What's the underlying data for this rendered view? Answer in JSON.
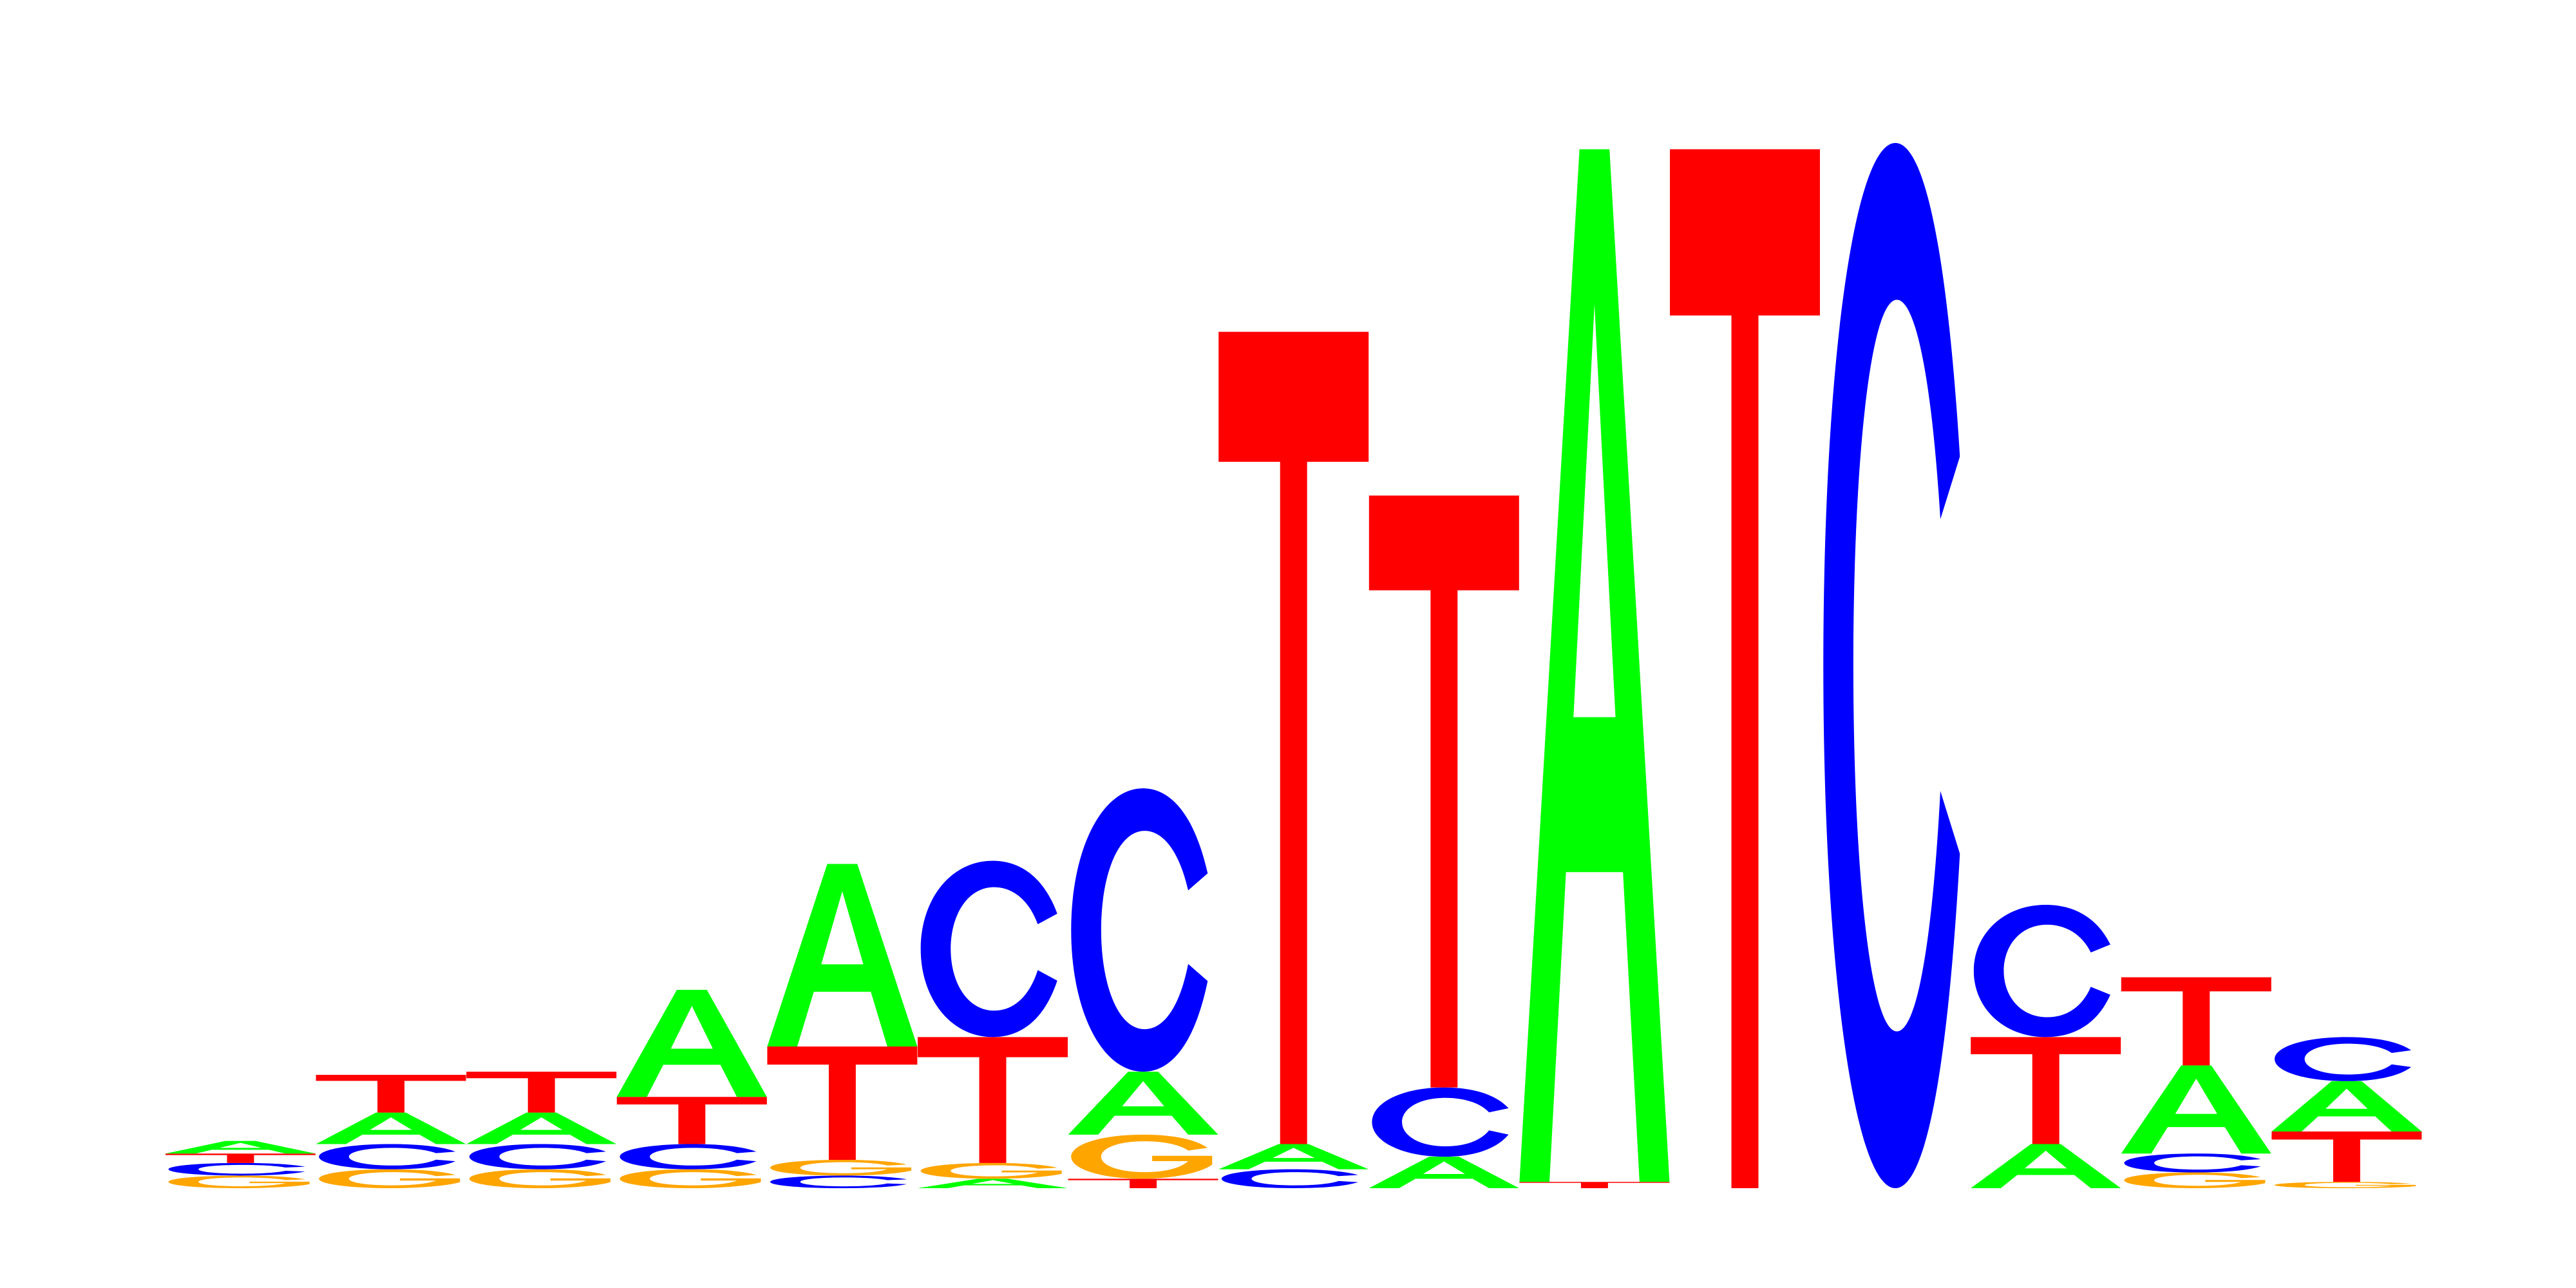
{
  "chart_data": {
    "type": "sequence-logo",
    "alphabet": [
      "A",
      "C",
      "G",
      "T"
    ],
    "colors": {
      "A": "#00ff00",
      "C": "#0000ff",
      "G": "#ffa500",
      "T": "#ff0000"
    },
    "y_unit": "bits",
    "ylim": [
      0,
      2
    ],
    "axes_shown": false,
    "positions": [
      {
        "position": 1,
        "stack": [
          {
            "base": "G",
            "height": 0.02
          },
          {
            "base": "C",
            "height": 0.02
          },
          {
            "base": "T",
            "height": 0.015
          },
          {
            "base": "A",
            "height": 0.02
          }
        ]
      },
      {
        "position": 2,
        "stack": [
          {
            "base": "G",
            "height": 0.03
          },
          {
            "base": "C",
            "height": 0.04
          },
          {
            "base": "A",
            "height": 0.05
          },
          {
            "base": "T",
            "height": 0.06
          }
        ]
      },
      {
        "position": 3,
        "stack": [
          {
            "base": "G",
            "height": 0.03
          },
          {
            "base": "C",
            "height": 0.04
          },
          {
            "base": "A",
            "height": 0.05
          },
          {
            "base": "T",
            "height": 0.065
          }
        ]
      },
      {
        "position": 4,
        "stack": [
          {
            "base": "G",
            "height": 0.03
          },
          {
            "base": "C",
            "height": 0.04
          },
          {
            "base": "T",
            "height": 0.075
          },
          {
            "base": "A",
            "height": 0.17
          }
        ]
      },
      {
        "position": 5,
        "stack": [
          {
            "base": "C",
            "height": 0.02
          },
          {
            "base": "G",
            "height": 0.025
          },
          {
            "base": "T",
            "height": 0.18
          },
          {
            "base": "A",
            "height": 0.29
          }
        ]
      },
      {
        "position": 6,
        "stack": [
          {
            "base": "A",
            "height": 0.015
          },
          {
            "base": "G",
            "height": 0.025
          },
          {
            "base": "T",
            "height": 0.2
          },
          {
            "base": "C",
            "height": 0.28
          }
        ]
      },
      {
        "position": 7,
        "stack": [
          {
            "base": "T",
            "height": 0.015
          },
          {
            "base": "G",
            "height": 0.07
          },
          {
            "base": "A",
            "height": 0.1
          },
          {
            "base": "C",
            "height": 0.45
          }
        ]
      },
      {
        "position": 8,
        "stack": [
          {
            "base": "C",
            "height": 0.03
          },
          {
            "base": "A",
            "height": 0.04
          },
          {
            "base": "T",
            "height": 1.29
          }
        ]
      },
      {
        "position": 9,
        "stack": [
          {
            "base": "A",
            "height": 0.05
          },
          {
            "base": "C",
            "height": 0.11
          },
          {
            "base": "T",
            "height": 0.94
          }
        ]
      },
      {
        "position": 10,
        "stack": [
          {
            "base": "T",
            "height": 0.01
          },
          {
            "base": "A",
            "height": 1.64
          }
        ]
      },
      {
        "position": 11,
        "stack": [
          {
            "base": "T",
            "height": 1.65
          }
        ]
      },
      {
        "position": 12,
        "stack": [
          {
            "base": "C",
            "height": 1.66
          }
        ]
      },
      {
        "position": 13,
        "stack": [
          {
            "base": "A",
            "height": 0.07
          },
          {
            "base": "T",
            "height": 0.17
          },
          {
            "base": "C",
            "height": 0.21
          }
        ]
      },
      {
        "position": 14,
        "stack": [
          {
            "base": "G",
            "height": 0.025
          },
          {
            "base": "C",
            "height": 0.03
          },
          {
            "base": "A",
            "height": 0.14
          },
          {
            "base": "T",
            "height": 0.14
          }
        ]
      },
      {
        "position": 15,
        "stack": [
          {
            "base": "G",
            "height": 0.01
          },
          {
            "base": "T",
            "height": 0.08
          },
          {
            "base": "A",
            "height": 0.08
          },
          {
            "base": "C",
            "height": 0.07
          }
        ]
      }
    ]
  }
}
